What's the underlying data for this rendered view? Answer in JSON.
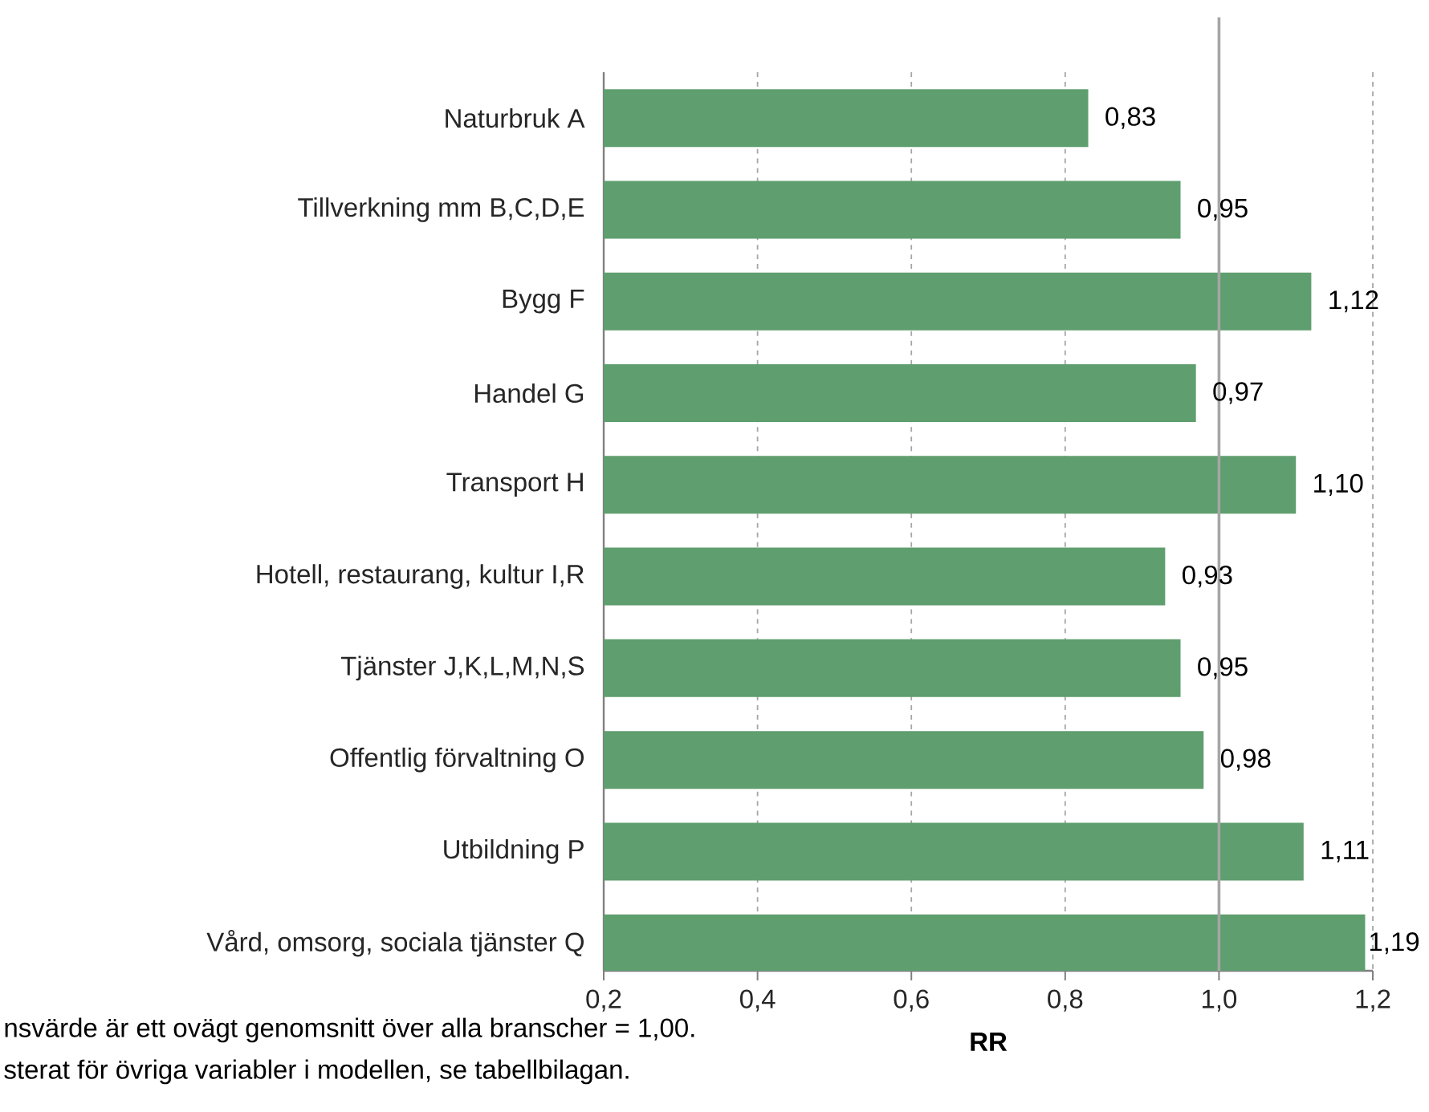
{
  "chart_data": {
    "type": "bar",
    "orientation": "horizontal",
    "xlabel": "RR",
    "categories": [
      "Naturbruk A",
      "Tillverkning mm B,C,D,E",
      "Bygg F",
      "Handel G",
      "Transport H",
      "Hotell, restaurang, kultur I,R",
      "Tjänster J,K,L,M,N,S",
      "Offentlig förvaltning O",
      "Utbildning P",
      "Vård, omsorg, sociala tjänster Q"
    ],
    "values": [
      0.83,
      0.95,
      1.12,
      0.97,
      1.1,
      0.93,
      0.95,
      0.98,
      1.11,
      1.19
    ],
    "value_labels": [
      "0,83",
      "0,95",
      "1,12",
      "0,97",
      "1,10",
      "0,93",
      "0,95",
      "0,98",
      "1,11",
      "1,19"
    ],
    "color": "#5f9e6e",
    "xlim": [
      0.2,
      1.2
    ],
    "xticks": [
      {
        "value": 0.2,
        "label": "0,2"
      },
      {
        "value": 0.4,
        "label": "0,4"
      },
      {
        "value": 0.6,
        "label": "0,6"
      },
      {
        "value": 0.8,
        "label": "0,8"
      },
      {
        "value": 1.0,
        "label": "1,0"
      },
      {
        "value": 1.2,
        "label": "1,2"
      }
    ],
    "grid": "x",
    "ref_lines": [
      {
        "axis": "x",
        "value": 1.0,
        "color": "#a6a6a6"
      }
    ],
    "annotations": [
      "nsvärde är ett ovägt genomsnitt över alla branscher = 1,00.",
      "sterat för övriga variabler i modellen, se tabellbilagan."
    ]
  }
}
